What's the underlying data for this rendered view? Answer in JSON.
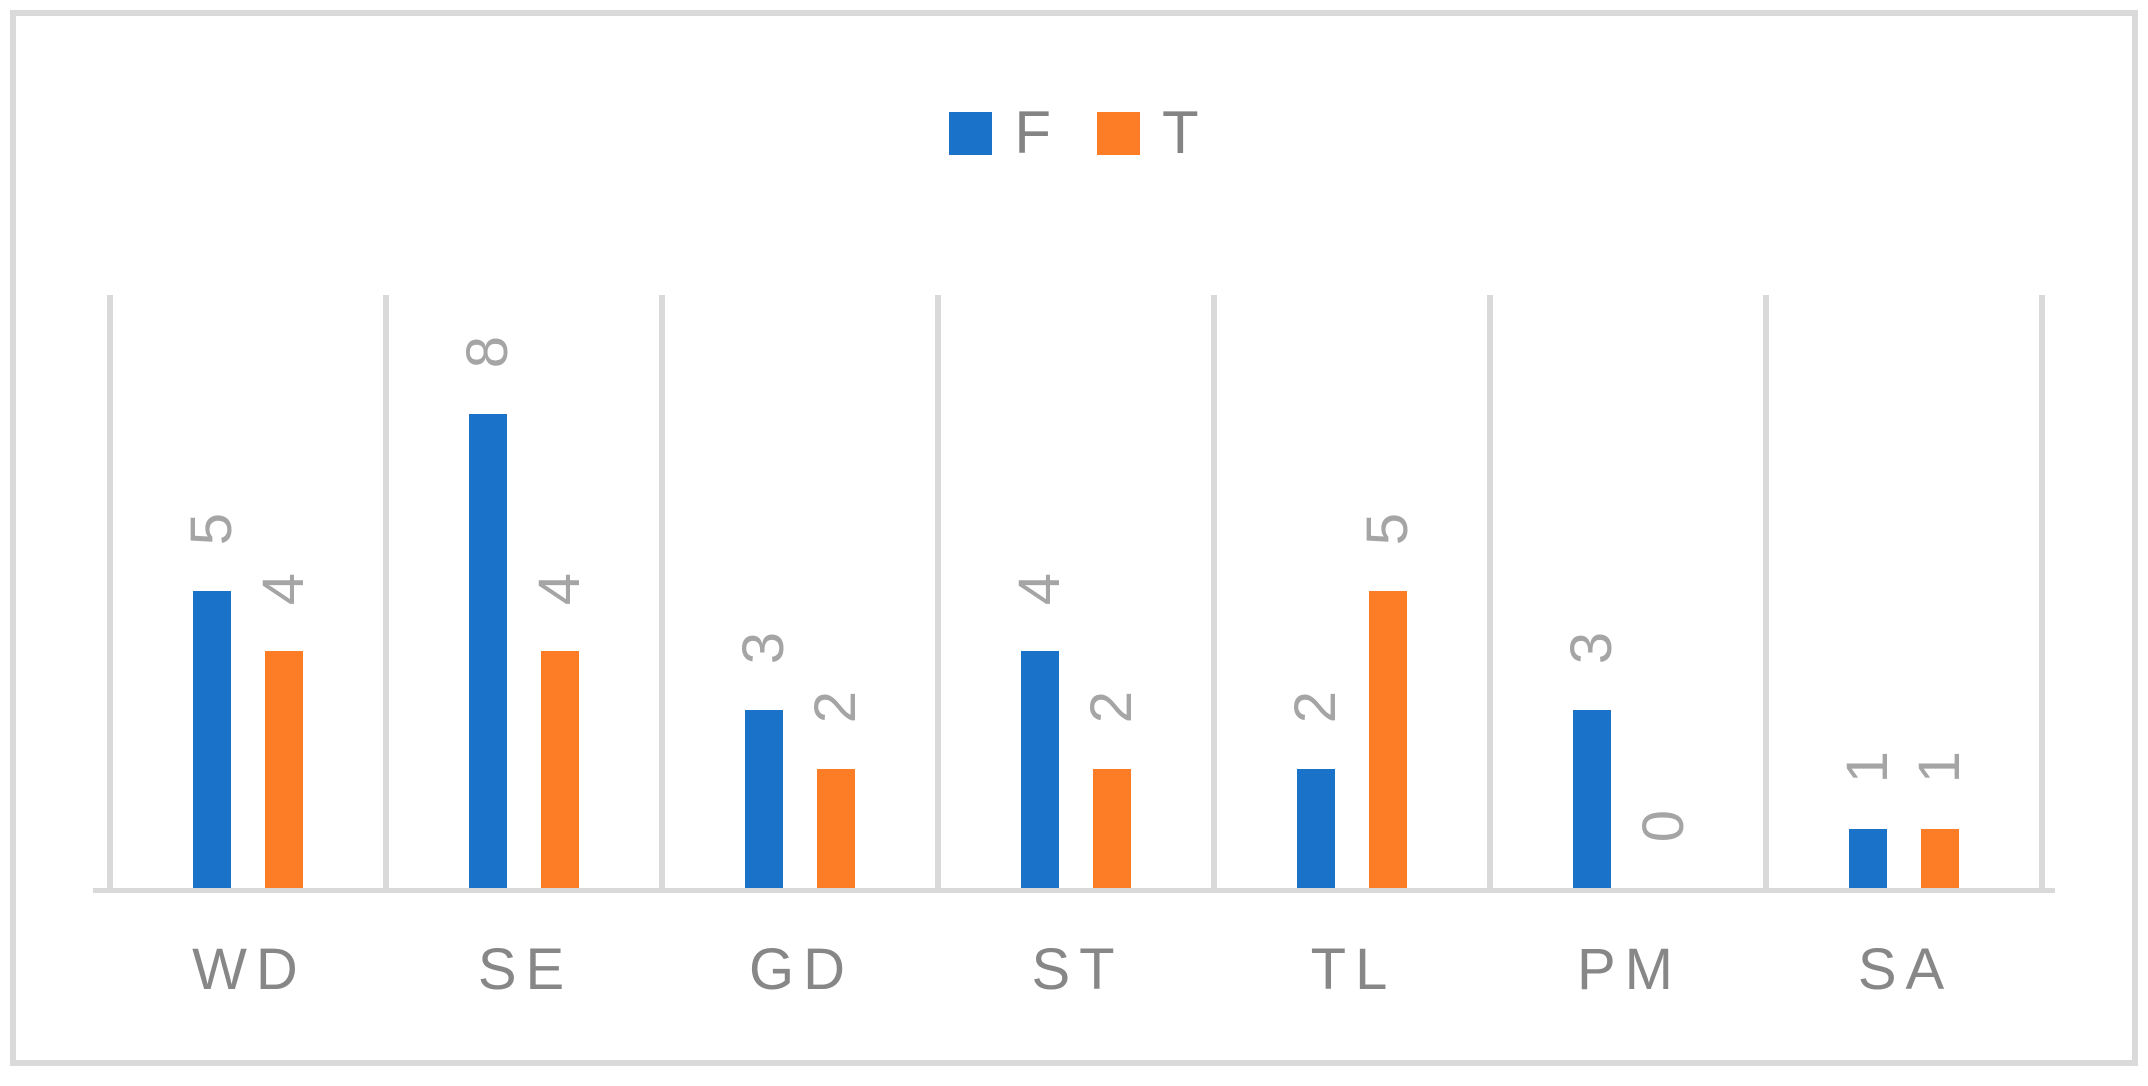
{
  "chart_data": {
    "type": "bar",
    "title": "",
    "xlabel": "",
    "ylabel": "",
    "categories": [
      "WD",
      "SE",
      "GD",
      "ST",
      "TL",
      "PM",
      "SA"
    ],
    "series": [
      {
        "name": "F",
        "color": "#1a73c8",
        "values": [
          5,
          8,
          3,
          4,
          2,
          3,
          1
        ]
      },
      {
        "name": "T",
        "color": "#fc7d26",
        "values": [
          4,
          4,
          2,
          2,
          5,
          0,
          1
        ]
      }
    ],
    "ylim": [
      0,
      10
    ],
    "y_axis_visible": false,
    "grid": "vertical category separators only",
    "gridline_color": "#d9d9d9",
    "axis_line_color": "#d9d9d9",
    "legend_position": "top-center",
    "data_labels": "value above bar, rotated 90deg reading bottom-to-top",
    "data_label_color": "#a5a5a5",
    "category_label_color": "#878787",
    "frame_border_color": "#dadada"
  },
  "legend": {
    "items": [
      {
        "label": "F",
        "color": "#1a73c8"
      },
      {
        "label": "T",
        "color": "#fc7d26"
      }
    ]
  }
}
